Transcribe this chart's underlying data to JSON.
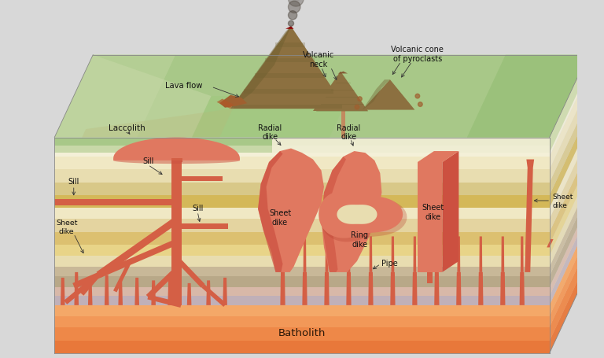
{
  "background": "#d8d8d8",
  "fig_width": 7.68,
  "fig_height": 4.56,
  "dpi": 100,
  "labels": {
    "lava_flow": "Lava flow",
    "volcanic_neck": "Volcanic\nneck",
    "volcanic_cone": "Volcanic cone\nof pyroclasts",
    "laccolith": "Laccolith",
    "sill": "Sill",
    "sheet_dike": "Sheet\ndike",
    "radial_dike": "Radial\ndike",
    "ring_dike": "Ring\ndike",
    "pipe": "Pipe",
    "batholith": "Batholith"
  },
  "colors": {
    "magma": "#d45f45",
    "magma_light": "#e07860",
    "magma_dark": "#b84030",
    "magma_mid": "#cc5040",
    "batholith_deep": "#e8783a",
    "batholith_mid": "#f09050",
    "batholith_light": "#f8b878",
    "layer_gray_dark": "#b8a888",
    "layer_gray": "#c8b898",
    "layer_gray_light": "#d8c8a8",
    "layer_cream1": "#e8ddb0",
    "layer_cream2": "#f0e8c4",
    "layer_cream3": "#f4f0d8",
    "layer_yellow1": "#e8d488",
    "layer_yellow2": "#dcc070",
    "layer_yellow3": "#d4b858",
    "layer_beige1": "#e4d4a0",
    "layer_beige2": "#d8c888",
    "layer_purple": "#c0b0b8",
    "layer_pink": "#d8b8a8",
    "layer_rose": "#e0c8b8",
    "surface_light": "#c8d8a8",
    "surface_mid": "#a8c888",
    "surface_dark": "#88b868",
    "surface_top": "#78a858",
    "right_face_base": "#c0b080",
    "top_face_base": "#90b870",
    "cutaway_bg": "#e8ddb0",
    "volcano_brown": "#8c7040",
    "volcano_dark": "#706030",
    "lava_blob": "#a06030",
    "smoke": "#504840"
  }
}
